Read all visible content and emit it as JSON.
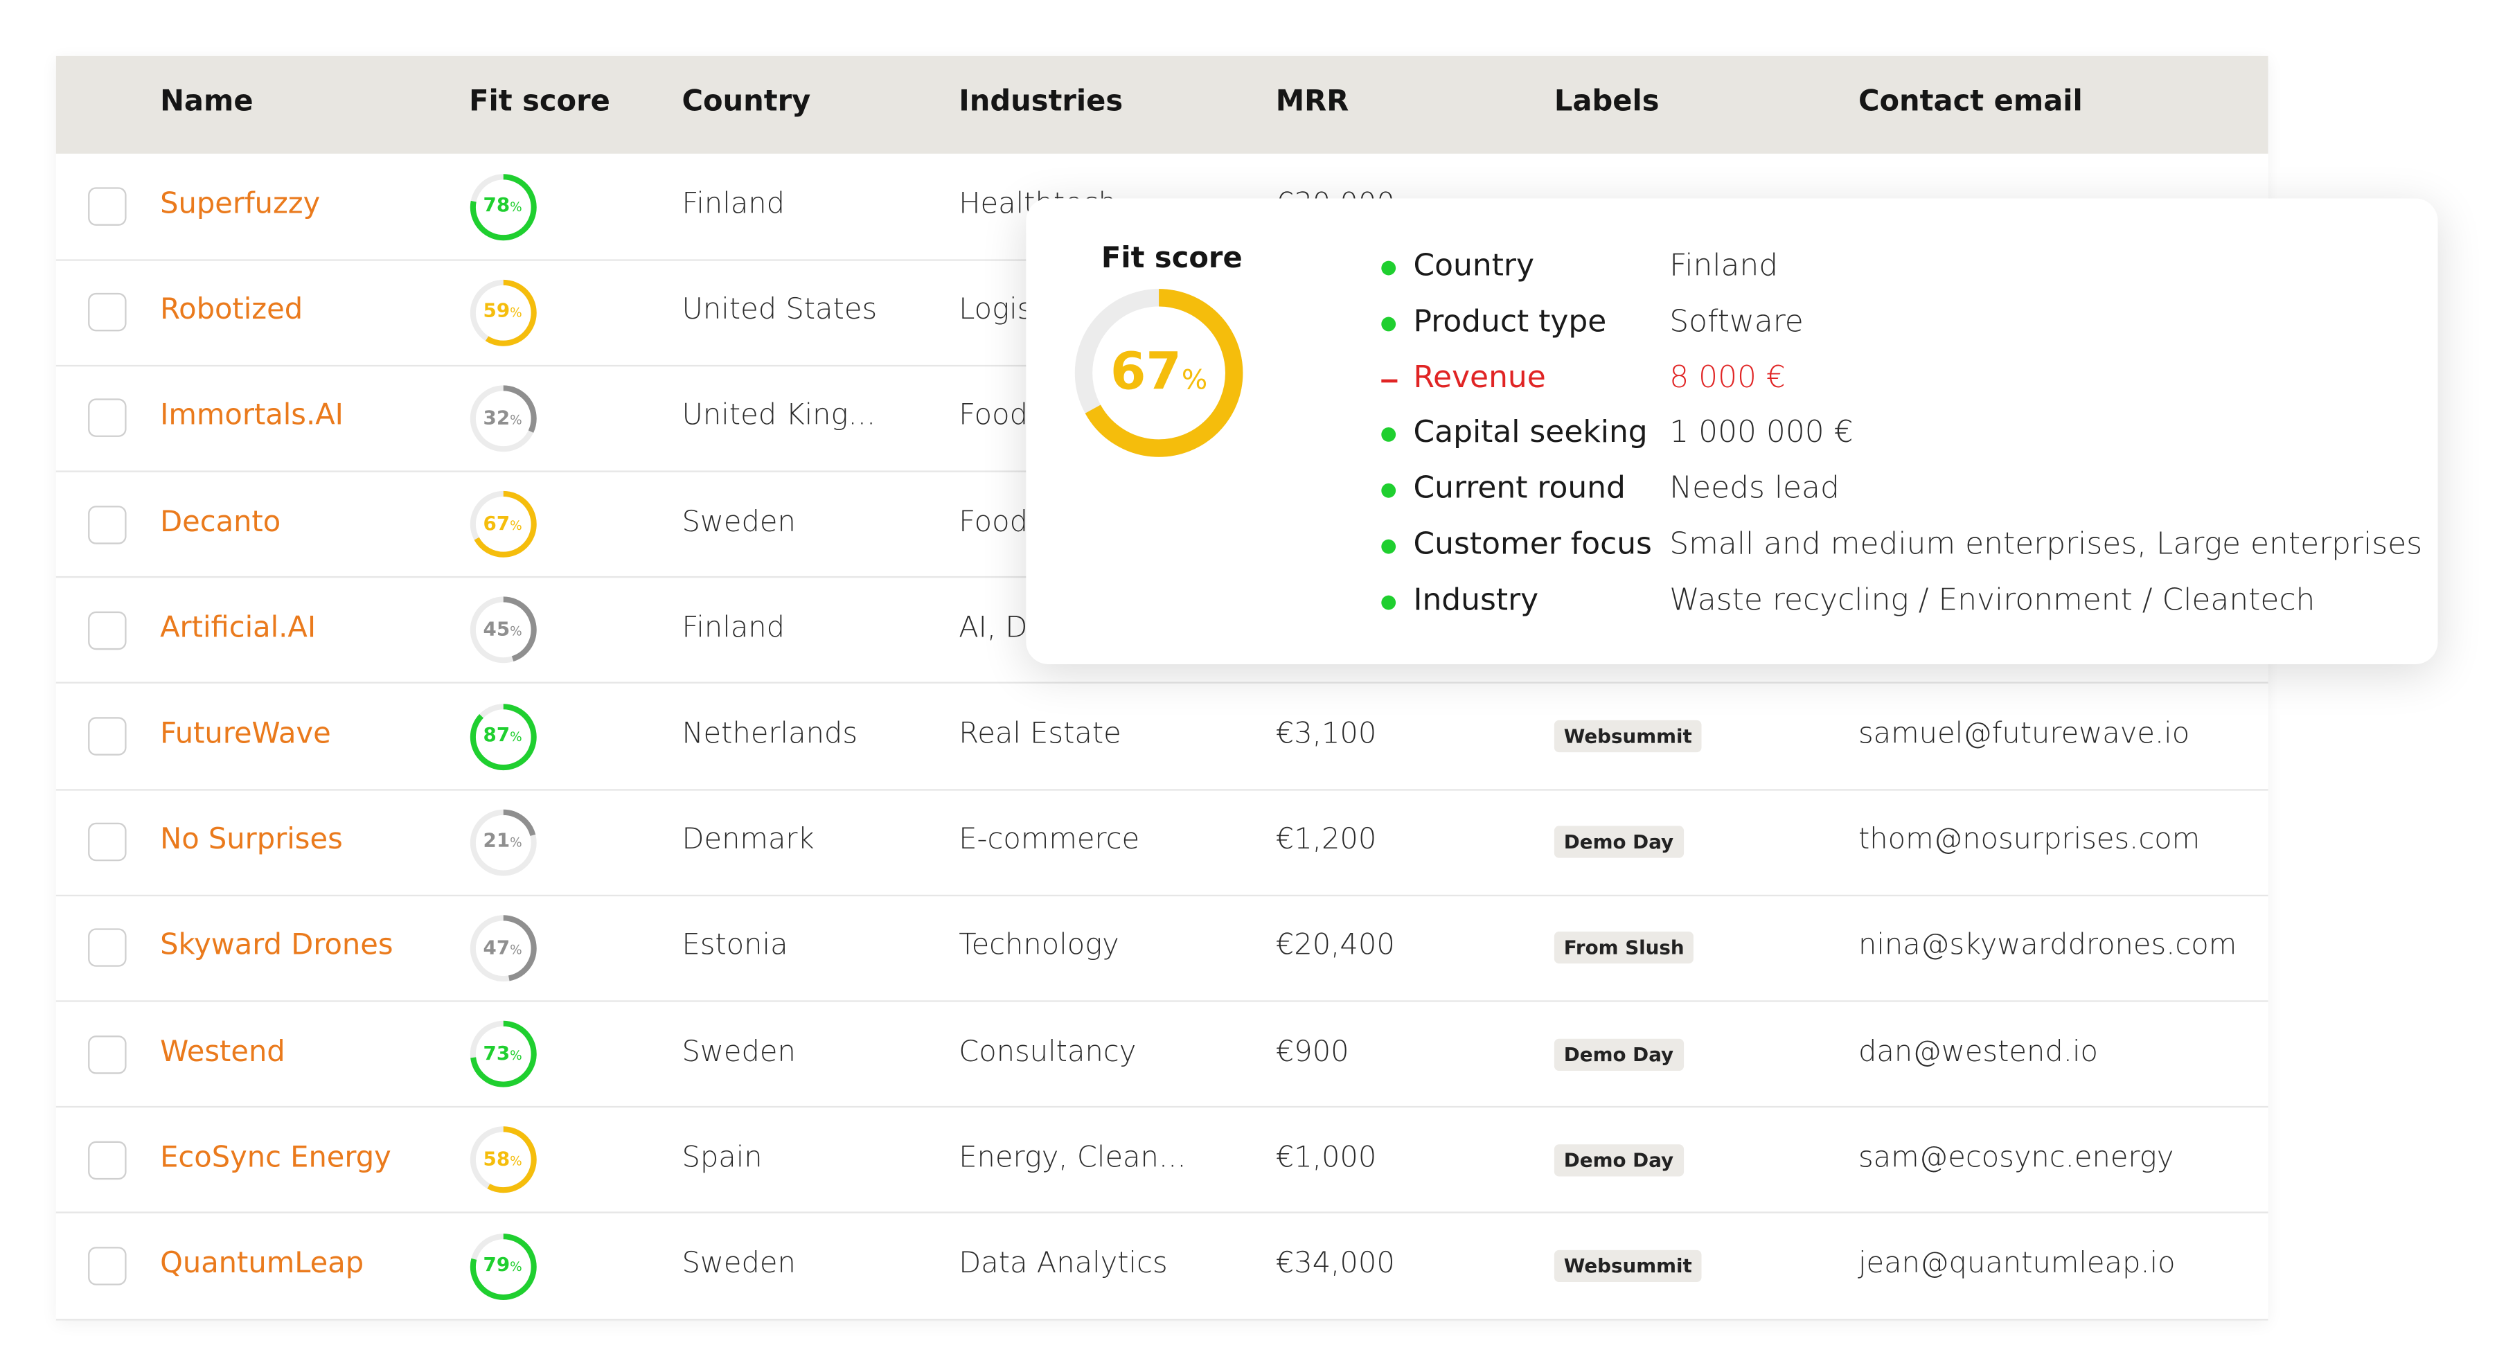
{
  "table": {
    "columns": [
      "Name",
      "Fit score",
      "Country",
      "Industries",
      "MRR",
      "Labels",
      "Contact email"
    ],
    "score_unit": "%",
    "rows": [
      {
        "name": "Superfuzzy",
        "fit_score": 78,
        "score_color": "#1fcf2f",
        "country": "Finland",
        "industries": "Healthtech",
        "mrr": "€30,000",
        "label": null,
        "email": null
      },
      {
        "name": "Robotized",
        "fit_score": 59,
        "score_color": "#f5bd0c",
        "country": "United States",
        "industries": "Logistics",
        "mrr": null,
        "label": null,
        "email": null
      },
      {
        "name": "Immortals.AI",
        "fit_score": 32,
        "score_color": "#8f8f8f",
        "country": "United King...",
        "industries": "Food",
        "mrr": null,
        "label": null,
        "email": null
      },
      {
        "name": "Decanto",
        "fit_score": 67,
        "score_color": "#f5bd0c",
        "country": "Sweden",
        "industries": "Food",
        "mrr": null,
        "label": null,
        "email": null
      },
      {
        "name": "Artificial.AI",
        "fit_score": 45,
        "score_color": "#8f8f8f",
        "country": "Finland",
        "industries": "AI, Deeptech",
        "mrr": null,
        "label": null,
        "email": null
      },
      {
        "name": "FutureWave",
        "fit_score": 87,
        "score_color": "#1fcf2f",
        "country": "Netherlands",
        "industries": "Real Estate",
        "mrr": "€3,100",
        "label": "Websummit",
        "email": "samuel@futurewave.io"
      },
      {
        "name": "No Surprises",
        "fit_score": 21,
        "score_color": "#8f8f8f",
        "country": "Denmark",
        "industries": "E-commerce",
        "mrr": "€1,200",
        "label": "Demo Day",
        "email": "thom@nosurprises.com"
      },
      {
        "name": "Skyward Drones",
        "fit_score": 47,
        "score_color": "#8f8f8f",
        "country": "Estonia",
        "industries": "Technology",
        "mrr": "€20,400",
        "label": "From Slush",
        "email": "nina@skywarddrones.com"
      },
      {
        "name": "Westend",
        "fit_score": 73,
        "score_color": "#1fcf2f",
        "country": "Sweden",
        "industries": "Consultancy",
        "mrr": "€900",
        "label": "Demo Day",
        "email": "dan@westend.io"
      },
      {
        "name": "EcoSync Energy",
        "fit_score": 58,
        "score_color": "#f5bd0c",
        "country": "Spain",
        "industries": "Energy, Clean...",
        "mrr": "€1,000",
        "label": "Demo Day",
        "email": "sam@ecosync.energy"
      },
      {
        "name": "QuantumLeap",
        "fit_score": 79,
        "score_color": "#1fcf2f",
        "country": "Sweden",
        "industries": "Data Analytics",
        "mrr": "€34,000",
        "label": "Websummit",
        "email": "jean@quantumleap.io"
      }
    ]
  },
  "popup": {
    "title": "Fit score",
    "score": 67,
    "score_unit": "%",
    "color": "#f5bd0c",
    "criteria": [
      {
        "status": "match",
        "label": "Country",
        "value": "Finland"
      },
      {
        "status": "match",
        "label": "Product type",
        "value": "Software"
      },
      {
        "status": "miss",
        "label": "Revenue",
        "value": "8 000 €"
      },
      {
        "status": "match",
        "label": "Capital seeking",
        "value": "1 000 000 €"
      },
      {
        "status": "match",
        "label": "Current round",
        "value": "Needs lead"
      },
      {
        "status": "match",
        "label": "Customer focus",
        "value": "Small and medium enterprises, Large enterprises"
      },
      {
        "status": "match",
        "label": "Industry",
        "value": "Waste recycling / Environment / Cleantech"
      }
    ]
  }
}
